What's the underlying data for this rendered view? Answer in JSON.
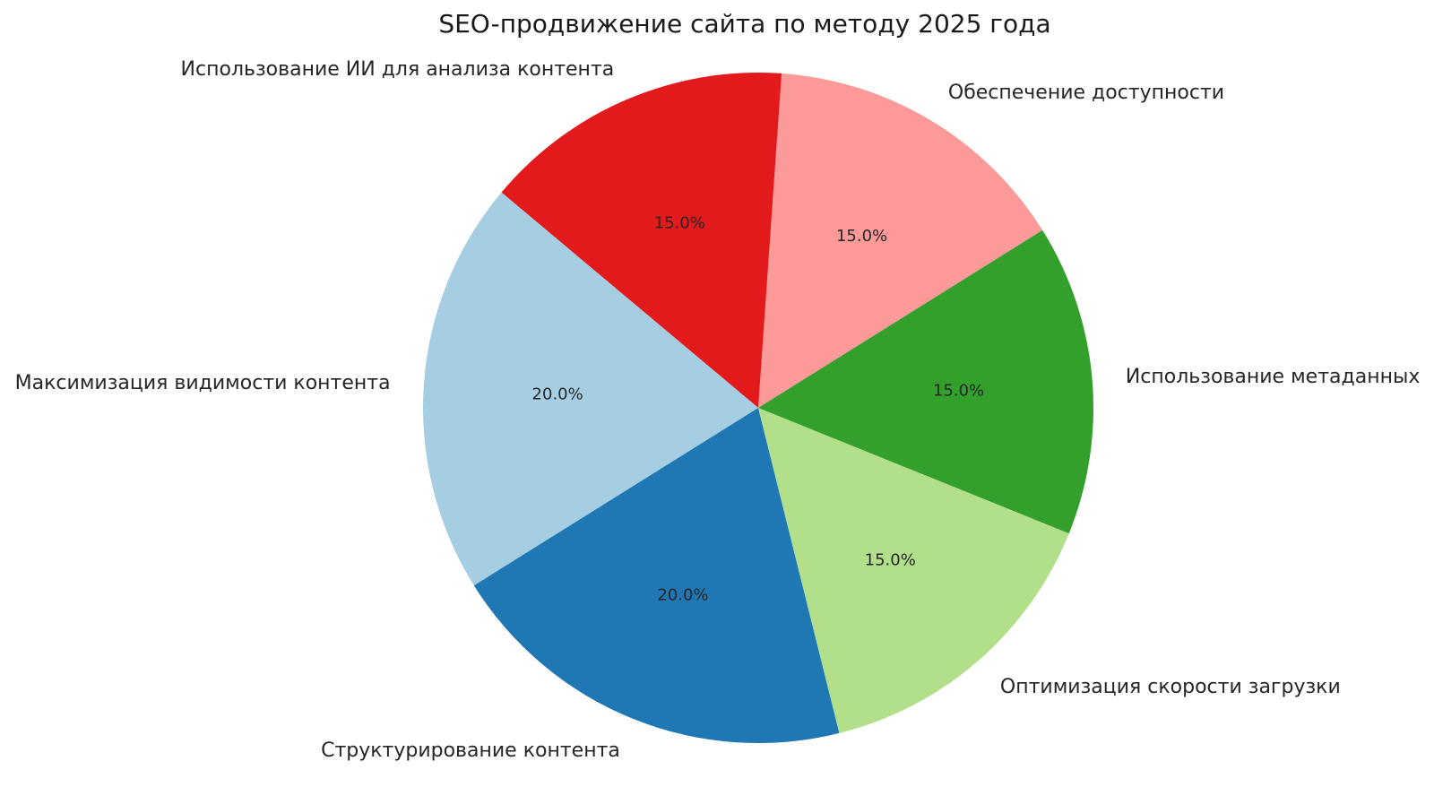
{
  "page": {
    "background": "#ffffff"
  },
  "chart_data": {
    "type": "pie",
    "title": "SEO-продвижение сайта по методу 2025 года",
    "legend_position": "none",
    "start_angle_deg": 32,
    "direction": "counterclockwise",
    "text_color": "#262626",
    "percent_format": "1 decimal place with % sign",
    "slices": [
      {
        "label": "Обеспечение доступности",
        "value": 15.0,
        "percent_label": "15.0%",
        "color": "#fb9a99"
      },
      {
        "label": "Использование ИИ для анализа контента",
        "value": 15.0,
        "percent_label": "15.0%",
        "color": "#e31a1c"
      },
      {
        "label": "Максимизация видимости контента",
        "value": 20.0,
        "percent_label": "20.0%",
        "color": "#a6cee3"
      },
      {
        "label": "Структурирование контента",
        "value": 20.0,
        "percent_label": "20.0%",
        "color": "#1f78b4"
      },
      {
        "label": "Оптимизация скорости загрузки",
        "value": 15.0,
        "percent_label": "15.0%",
        "color": "#b2df8a"
      },
      {
        "label": "Использование метаданных",
        "value": 15.0,
        "percent_label": "15.0%",
        "color": "#33a02c"
      }
    ]
  }
}
